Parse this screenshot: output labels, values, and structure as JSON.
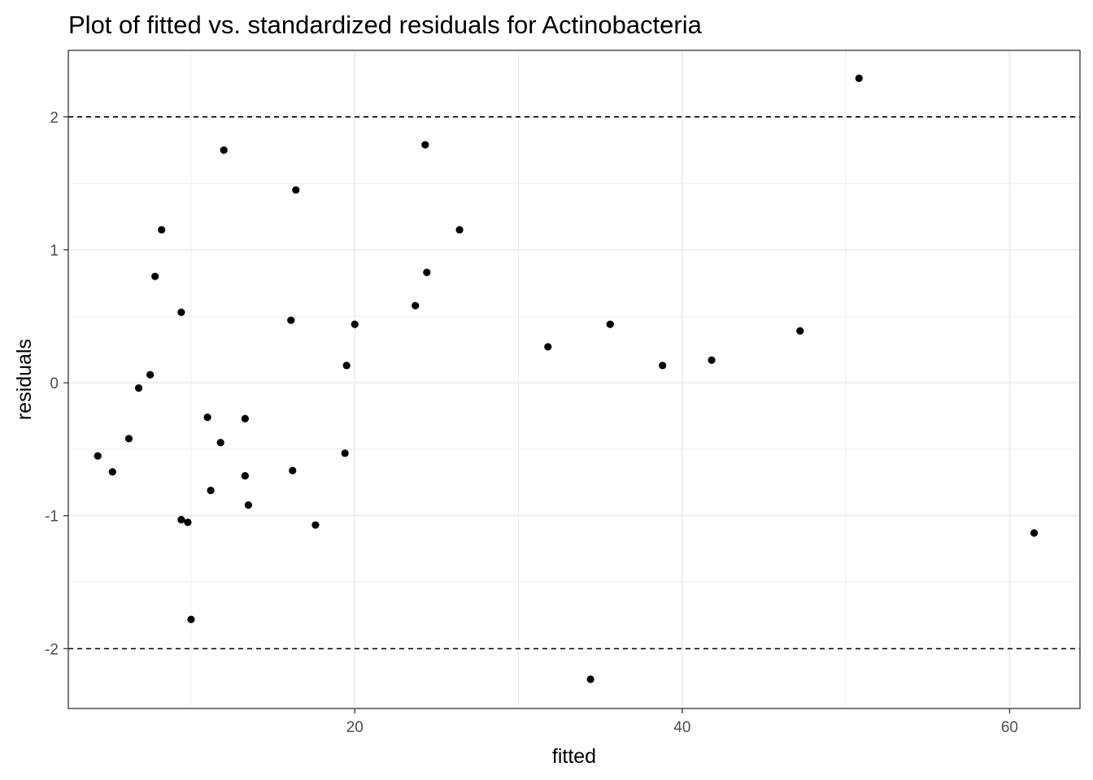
{
  "chart_data": {
    "type": "scatter",
    "title": "Plot of fitted vs. standardized residuals for Actinobacteria",
    "xlabel": "fitted",
    "ylabel": "residuals",
    "xlim": [
      2.5,
      64.3
    ],
    "ylim": [
      -2.45,
      2.5
    ],
    "x_ticks": [
      20,
      40,
      60
    ],
    "x_tick_labels": [
      "20",
      "40",
      "60"
    ],
    "y_ticks": [
      -2,
      -1,
      0,
      1,
      2
    ],
    "y_tick_labels": [
      "-2",
      "-1",
      "0",
      "1",
      "2"
    ],
    "reference_lines": [
      2,
      -2
    ],
    "grid": true,
    "colors": {
      "points": "#000000",
      "grid": "#ebebeb",
      "panel_border": "#333333",
      "reference_line": "#000000"
    },
    "series": [
      {
        "points": [
          {
            "x": 4.3,
            "y": -0.55
          },
          {
            "x": 5.2,
            "y": -0.67
          },
          {
            "x": 6.2,
            "y": -0.42
          },
          {
            "x": 6.8,
            "y": -0.04
          },
          {
            "x": 7.5,
            "y": 0.06
          },
          {
            "x": 7.8,
            "y": 0.8
          },
          {
            "x": 8.2,
            "y": 1.15
          },
          {
            "x": 9.4,
            "y": 0.53
          },
          {
            "x": 9.4,
            "y": -1.03
          },
          {
            "x": 9.8,
            "y": -1.05
          },
          {
            "x": 10.0,
            "y": -1.78
          },
          {
            "x": 11.0,
            "y": -0.26
          },
          {
            "x": 11.2,
            "y": -0.81
          },
          {
            "x": 11.8,
            "y": -0.45
          },
          {
            "x": 12.0,
            "y": 1.75
          },
          {
            "x": 13.3,
            "y": -0.27
          },
          {
            "x": 13.3,
            "y": -0.7
          },
          {
            "x": 13.5,
            "y": -0.92
          },
          {
            "x": 16.1,
            "y": 0.47
          },
          {
            "x": 16.2,
            "y": -0.66
          },
          {
            "x": 16.4,
            "y": 1.45
          },
          {
            "x": 17.6,
            "y": -1.07
          },
          {
            "x": 19.4,
            "y": -0.53
          },
          {
            "x": 19.5,
            "y": 0.13
          },
          {
            "x": 20.0,
            "y": 0.44
          },
          {
            "x": 23.7,
            "y": 0.58
          },
          {
            "x": 24.3,
            "y": 1.79
          },
          {
            "x": 24.4,
            "y": 0.83
          },
          {
            "x": 26.4,
            "y": 1.15
          },
          {
            "x": 31.8,
            "y": 0.27
          },
          {
            "x": 34.4,
            "y": -2.23
          },
          {
            "x": 35.6,
            "y": 0.44
          },
          {
            "x": 38.8,
            "y": 0.13
          },
          {
            "x": 41.8,
            "y": 0.17
          },
          {
            "x": 47.2,
            "y": 0.39
          },
          {
            "x": 50.8,
            "y": 2.29
          },
          {
            "x": 61.5,
            "y": -1.13
          }
        ]
      }
    ]
  }
}
